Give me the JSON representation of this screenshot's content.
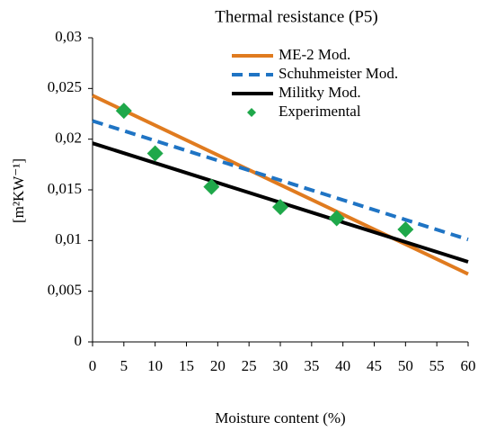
{
  "chart_data": {
    "type": "line",
    "title": "Thermal resistance (P5)",
    "x_label": "Moisture content (%)",
    "y_label": "[m²KW⁻¹]",
    "xlim": [
      0,
      60
    ],
    "xticks": [
      0,
      5,
      10,
      15,
      20,
      25,
      30,
      35,
      40,
      45,
      50,
      55,
      60
    ],
    "ylim": [
      0,
      0.03
    ],
    "yticks": [
      0,
      {
        "value": 0.005,
        "label": "0,005"
      },
      {
        "value": 0.01,
        "label": "0,01"
      },
      {
        "value": 0.015,
        "label": "0,015"
      },
      {
        "value": 0.02,
        "label": "0,02"
      },
      {
        "value": 0.025,
        "label": "0,025"
      },
      {
        "value": 0.03,
        "label": "0,03"
      }
    ],
    "grid": false,
    "legend": "top-right",
    "series": [
      {
        "name": "ME-2 Mod.",
        "color": "#e07b1f",
        "style": "solid",
        "x": [
          0,
          60
        ],
        "values": [
          0.0243,
          0.0067
        ]
      },
      {
        "name": "Schuhmeister Mod.",
        "color": "#1f74c4",
        "style": "dashed",
        "x": [
          0,
          60
        ],
        "values": [
          0.0218,
          0.0101
        ]
      },
      {
        "name": "Militky Mod.",
        "color": "#000000",
        "style": "solid",
        "x": [
          0,
          60
        ],
        "values": [
          0.0196,
          0.0079
        ]
      },
      {
        "name": "Experimental",
        "color": "#1fa84a",
        "style": "markers",
        "x": [
          5,
          10,
          19,
          30,
          39,
          50
        ],
        "values": [
          0.0228,
          0.0186,
          0.0153,
          0.0133,
          0.0122,
          0.0111
        ]
      }
    ]
  }
}
